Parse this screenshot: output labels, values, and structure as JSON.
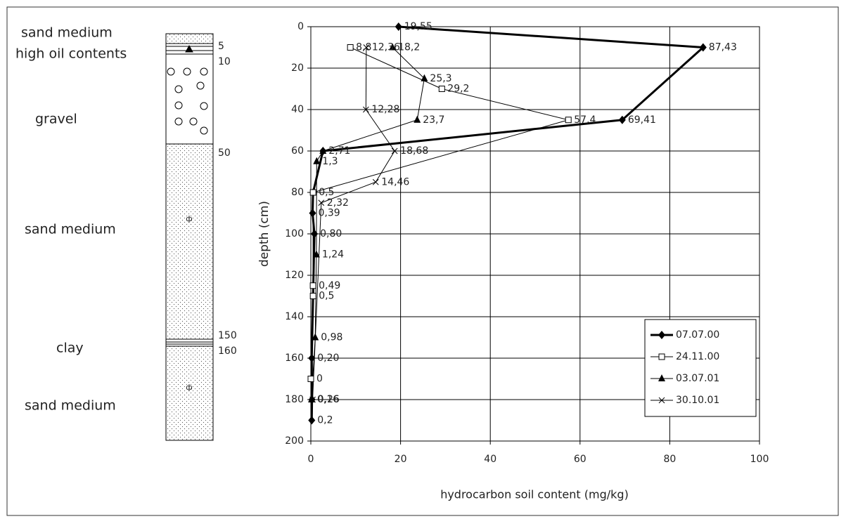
{
  "chart_data": {
    "type": "line",
    "xlabel": "hydrocarbon soil content (mg/kg)",
    "ylabel": "depth (cm)",
    "xlim": [
      0,
      100
    ],
    "xticks": [
      0,
      20,
      40,
      60,
      80,
      100
    ],
    "ylim": [
      0,
      200
    ],
    "y_inverted": true,
    "yticks": [
      0,
      20,
      40,
      60,
      80,
      100,
      120,
      140,
      160,
      180,
      200
    ],
    "grid": true,
    "legend": "lower right",
    "series": [
      {
        "name": "07.07.00",
        "color": "#000000",
        "marker": "diamond",
        "line_width": 3,
        "x": [
          19.55,
          87.43,
          69.41,
          2.71,
          0.5,
          0.39,
          0.8,
          0.2,
          0.26,
          0.2
        ],
        "y": [
          0,
          10,
          45,
          60,
          80,
          90,
          100,
          160,
          180,
          190
        ],
        "value_labels": [
          "19,55",
          "87,43",
          "69,41",
          "2,71",
          "0,5",
          "0,39",
          "0,80",
          "0,20",
          "0,26",
          "0,2"
        ]
      },
      {
        "name": "24.11.00",
        "color": "#000000",
        "marker": "square",
        "line_width": 1,
        "x": [
          8.8,
          29.2,
          57.4,
          0.5,
          0.49,
          0.5,
          0
        ],
        "y": [
          10,
          30,
          45,
          80,
          125,
          130,
          170
        ],
        "value_labels": [
          "8,8",
          "29,2",
          "57,4",
          null,
          "0,49",
          "0,5",
          "0"
        ]
      },
      {
        "name": "03.07.01",
        "color": "#000000",
        "marker": "triangle",
        "line_width": 1,
        "x": [
          18.2,
          25.3,
          23.7,
          2.71,
          1.3,
          1.24,
          0.98,
          0.16
        ],
        "y": [
          10,
          25,
          45,
          60,
          65,
          110,
          150,
          180
        ],
        "value_labels": [
          "18,2",
          "25,3",
          "23,7",
          null,
          "1,3",
          "1,24",
          "0,98",
          "0,16"
        ]
      },
      {
        "name": "30.10.01",
        "color": "#000000",
        "marker": "cross",
        "line_width": 1,
        "x": [
          12.36,
          12.28,
          18.68,
          14.46,
          2.32,
          0.4
        ],
        "y": [
          10,
          40,
          60,
          75,
          85,
          180
        ],
        "value_labels": [
          "12,36",
          "12,28",
          "18,68",
          "14,46",
          "2,32",
          null
        ]
      }
    ]
  },
  "soil_column": {
    "layers": [
      "sand medium",
      "high oil contents",
      "gravel",
      "sand medium",
      "clay",
      "sand medium"
    ],
    "depth_marks": [
      5,
      10,
      50,
      150,
      160
    ]
  }
}
